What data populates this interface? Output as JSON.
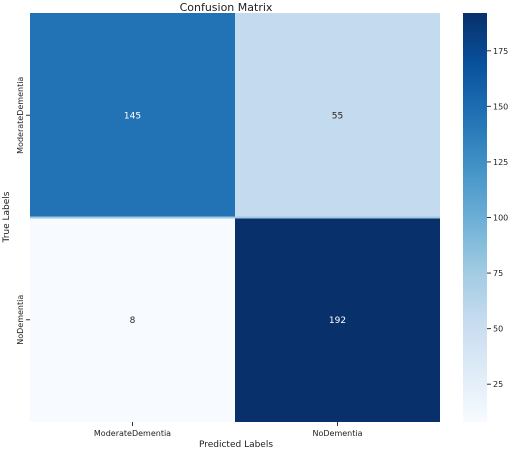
{
  "chart_data": {
    "type": "heatmap",
    "title": "Confusion Matrix",
    "xlabel": "Predicted Labels",
    "ylabel": "True Labels",
    "x_categories": [
      "ModerateDementia",
      "NoDementia"
    ],
    "y_categories": [
      "ModerateDementia",
      "NoDementia"
    ],
    "values": [
      [
        145,
        55
      ],
      [
        8,
        192
      ]
    ],
    "colormap": "Blues",
    "vmin": 8,
    "vmax": 192,
    "colorbar_ticks": [
      25,
      50,
      75,
      100,
      125,
      150,
      175
    ],
    "colors": {
      "low": "#f7fbff",
      "mid": "#6baed6",
      "high": "#08306b",
      "separator": "#9ecae1"
    }
  }
}
